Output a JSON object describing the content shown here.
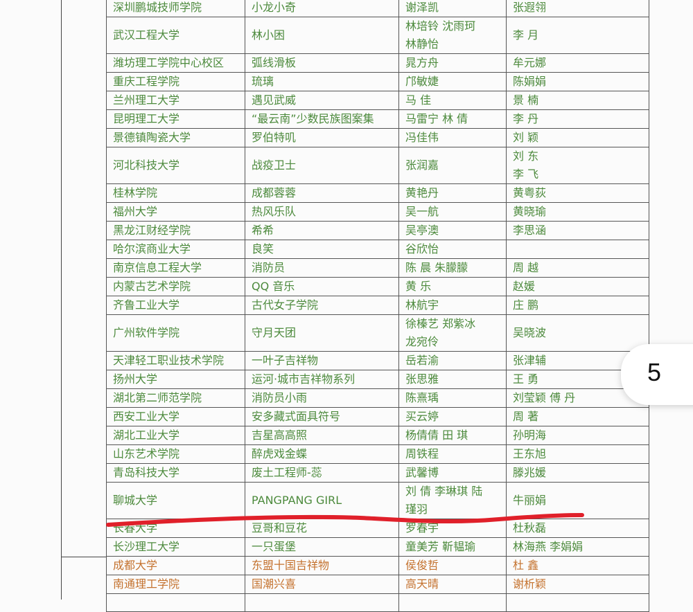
{
  "page_number": "5",
  "annotation_color": "#e0202a",
  "text_colors": {
    "group1": "#4c8a3c",
    "group2": "#c4722e"
  },
  "rows": [
    {
      "group": 1,
      "cells": [
        "深圳鹏城技师学院",
        "小龙小奇",
        "谢泽凯",
        "张遐翎"
      ]
    },
    {
      "group": 1,
      "cells": [
        "武汉工程大学",
        "林小困",
        "林培铃 沈雨珂\n林静怡",
        "李 月"
      ]
    },
    {
      "group": 1,
      "cells": [
        "潍坊理工学院中心校区",
        "弧线滑板",
        "晁方舟",
        "牟元娜"
      ]
    },
    {
      "group": 1,
      "cells": [
        "重庆工程学院",
        "琉璃",
        "邝敏婕",
        "陈娟娟"
      ]
    },
    {
      "group": 1,
      "cells": [
        "兰州理工大学",
        "遇见武威",
        "马 佳",
        "景 楠"
      ]
    },
    {
      "group": 1,
      "cells": [
        "昆明理工大学",
        "“最云南”少数民族图案集",
        "马雷宁 林  倩",
        "李 丹"
      ]
    },
    {
      "group": 1,
      "cells": [
        "景德镇陶瓷大学",
        "罗伯特叽",
        "冯佳伟",
        "刘 颖"
      ]
    },
    {
      "group": 1,
      "cells": [
        "河北科技大学",
        "战疫卫士",
        "张润嘉",
        "刘 东\n李 飞"
      ]
    },
    {
      "group": 1,
      "cells": [
        "桂林学院",
        "成都蓉蓉",
        "黄艳丹",
        "黄粤荻"
      ]
    },
    {
      "group": 1,
      "cells": [
        "福州大学",
        "热风乐队",
        "吴一航",
        "黄晓瑜"
      ]
    },
    {
      "group": 1,
      "cells": [
        "黑龙江财经学院",
        "希希",
        "吴亭澳",
        "李思涵"
      ]
    },
    {
      "group": 1,
      "cells": [
        "哈尔滨商业大学",
        "良笑",
        "谷欣怡",
        ""
      ]
    },
    {
      "group": 1,
      "cells": [
        "南京信息工程大学",
        "消防员",
        "陈 晨 朱朦朦",
        "周 越"
      ]
    },
    {
      "group": 1,
      "cells": [
        "内蒙古艺术学院",
        "QQ 音乐",
        "黄 乐",
        "赵媛"
      ]
    },
    {
      "group": 1,
      "cells": [
        "齐鲁工业大学",
        "古代女子学院",
        "林航宇",
        "庄 鹏"
      ]
    },
    {
      "group": 1,
      "cells": [
        "广州软件学院",
        "守月天团",
        "徐榛艺 郑紫冰\n龙宛伶",
        "吴晓波"
      ]
    },
    {
      "group": 1,
      "cells": [
        "天津轻工职业技术学院",
        "一叶子吉祥物",
        "岳若渝",
        "张津辅"
      ]
    },
    {
      "group": 1,
      "cells": [
        "扬州大学",
        "运河·城市吉祥物系列",
        "张思雅",
        "王 勇"
      ]
    },
    {
      "group": 1,
      "cells": [
        "湖北第二师范学院",
        "消防员小雨",
        "陈熹瑀",
        "刘莹颖 傅 丹"
      ]
    },
    {
      "group": 1,
      "cells": [
        "西安工业大学",
        "安多藏式面具符号",
        "买云婷",
        "周 著"
      ]
    },
    {
      "group": 1,
      "cells": [
        "湖北工业大学",
        "吉星高高照",
        "杨倩倩 田 琪",
        "孙明海"
      ]
    },
    {
      "group": 1,
      "cells": [
        "山东艺术学院",
        "醉虎戏金蝶",
        "周铁程",
        "王东旭"
      ]
    },
    {
      "group": 1,
      "cells": [
        "青岛科技大学",
        "废土工程师-蕊",
        "武馨博",
        "滕兆媛"
      ]
    },
    {
      "group": 1,
      "cells": [
        "聊城大学",
        "PANGPANG GIRL",
        "刘 倩 李琳琪 陆\n瑾羽",
        "牛丽娟"
      ]
    },
    {
      "group": 1,
      "cells": [
        "长春大学",
        "豆哥和豆花",
        "罗春宇",
        "杜秋磊"
      ]
    },
    {
      "group": 1,
      "cells": [
        "长沙理工大学",
        "一只蛋堡",
        "童美芳 靳韫瑜",
        "林海燕 李娟娟"
      ]
    },
    {
      "group": 2,
      "cells": [
        "成都大学",
        "东盟十国吉祥物",
        "侯俊哲",
        "杜 鑫"
      ]
    },
    {
      "group": 2,
      "cells": [
        "南通理工学院",
        "国潮兴喜",
        "高天晴",
        "谢析颖"
      ]
    },
    {
      "group": 2,
      "cells": [
        "",
        "",
        "",
        ""
      ]
    }
  ]
}
